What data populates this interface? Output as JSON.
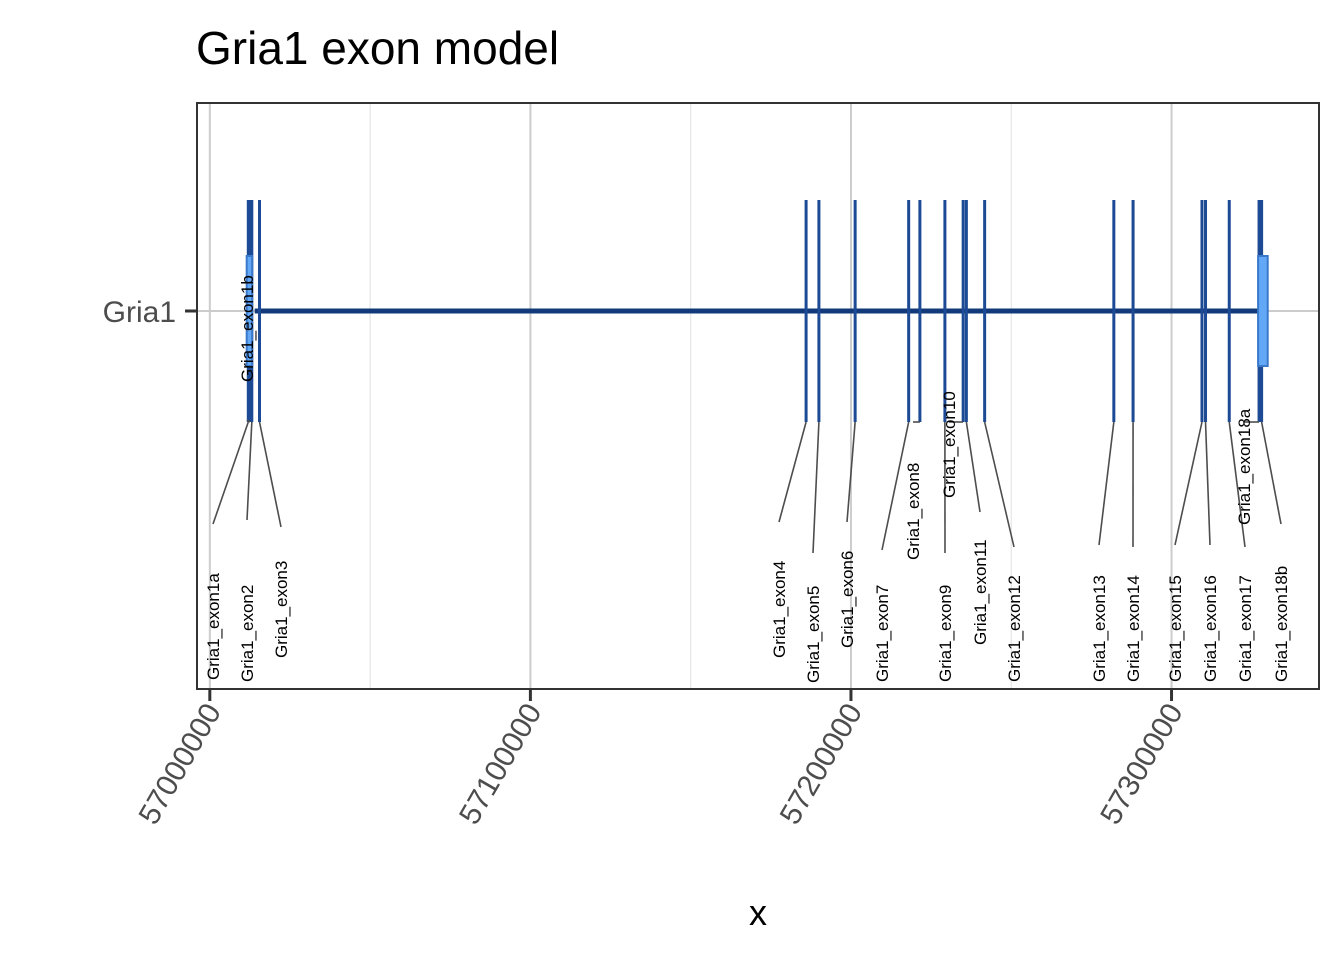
{
  "chart_data": {
    "type": "gene-model",
    "title": "Gria1 exon model",
    "xlabel": "x",
    "ylabel": "",
    "xlim": [
      56996000,
      57346000
    ],
    "grid": true,
    "x_ticks": [
      57000000,
      57100000,
      57200000,
      57300000
    ],
    "x_tick_labels": [
      "57000000",
      "57100000",
      "57200000",
      "57300000"
    ],
    "y_categories": [
      "Gria1"
    ],
    "gene": {
      "name": "Gria1",
      "start": 57014000,
      "end": 57328000
    },
    "utr_blocks": [
      {
        "start": 57011500,
        "end": 57013200
      },
      {
        "start": 57327000,
        "end": 57330000
      }
    ],
    "exons": [
      {
        "name": "Gria1_exon1a",
        "pos": 57012000
      },
      {
        "name": "Gria1_exon1b",
        "pos": 57012600
      },
      {
        "name": "Gria1_exon2",
        "pos": 57013100
      },
      {
        "name": "Gria1_exon3",
        "pos": 57015500
      },
      {
        "name": "Gria1_exon4",
        "pos": 57186000
      },
      {
        "name": "Gria1_exon5",
        "pos": 57190000
      },
      {
        "name": "Gria1_exon6",
        "pos": 57201300
      },
      {
        "name": "Gria1_exon7",
        "pos": 57218000
      },
      {
        "name": "Gria1_exon8",
        "pos": 57221500
      },
      {
        "name": "Gria1_exon9",
        "pos": 57229300
      },
      {
        "name": "Gria1_exon10",
        "pos": 57235000
      },
      {
        "name": "Gria1_exon11",
        "pos": 57236000
      },
      {
        "name": "Gria1_exon12",
        "pos": 57241700
      },
      {
        "name": "Gria1_exon13",
        "pos": 57282000
      },
      {
        "name": "Gria1_exon14",
        "pos": 57288000
      },
      {
        "name": "Gria1_exon15",
        "pos": 57309500
      },
      {
        "name": "Gria1_exon16",
        "pos": 57310600
      },
      {
        "name": "Gria1_exon17",
        "pos": 57318000
      },
      {
        "name": "Gria1_exon18a",
        "pos": 57327300
      },
      {
        "name": "Gria1_exon18b",
        "pos": 57328100
      }
    ],
    "colors": {
      "gene_line": "#12397a",
      "exon": "#1d4a94",
      "utr_fill": "#63a8f7",
      "utr_stroke": "#3a78c9",
      "grid_major": "#cccccc",
      "grid_minor": "#e5e5e5",
      "panel_border": "#333333",
      "leader": "#4d4d4d"
    }
  }
}
